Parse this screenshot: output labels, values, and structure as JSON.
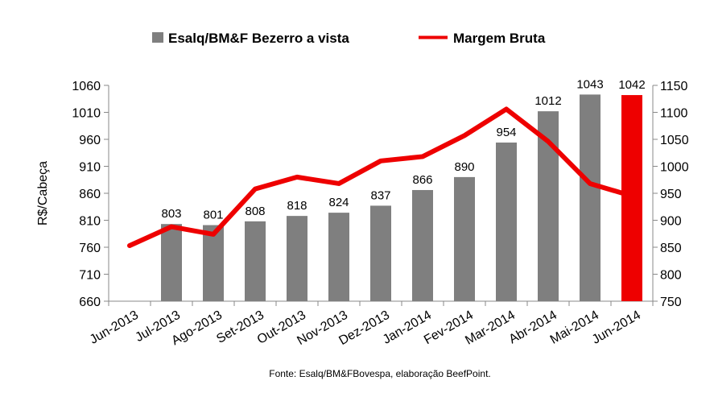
{
  "chart_data": {
    "type": "bar+line",
    "categories": [
      "Jun-2013",
      "Jul-2013",
      "Ago-2013",
      "Set-2013",
      "Out-2013",
      "Nov-2013",
      "Dez-2013",
      "Jan-2014",
      "Fev-2014",
      "Mar-2014",
      "Abr-2014",
      "Mai-2014",
      "Jun-2014"
    ],
    "series": [
      {
        "name": "Esalq/BM&F Bezerro a vista",
        "type": "bar",
        "axis": "left",
        "color": "#7f7f7f",
        "highlight_color": "#ee0000",
        "highlight_index": 12,
        "values": [
          null,
          803,
          801,
          808,
          818,
          824,
          837,
          866,
          890,
          954,
          1012,
          1043,
          1042
        ]
      },
      {
        "name": "Margem Bruta",
        "type": "line",
        "axis": "right",
        "color": "#ee0000",
        "values": [
          853,
          888,
          874,
          958,
          980,
          968,
          1010,
          1018,
          1057,
          1106,
          1046,
          968,
          945
        ]
      }
    ],
    "ylabel": "R$/Cabeça",
    "ylim_left": [
      660,
      1060
    ],
    "yticks_left": [
      "660",
      "710",
      "760",
      "810",
      "860",
      "910",
      "960",
      "1010",
      "1060"
    ],
    "ylim_right": [
      750,
      1150
    ],
    "yticks_right": [
      "750",
      "800",
      "850",
      "900",
      "950",
      "1000",
      "1050",
      "1100",
      "1150"
    ],
    "legend_position": "top",
    "grid": false,
    "source": "Fonte: Esalq/BM&FBovespa, elaboração BeefPoint."
  }
}
